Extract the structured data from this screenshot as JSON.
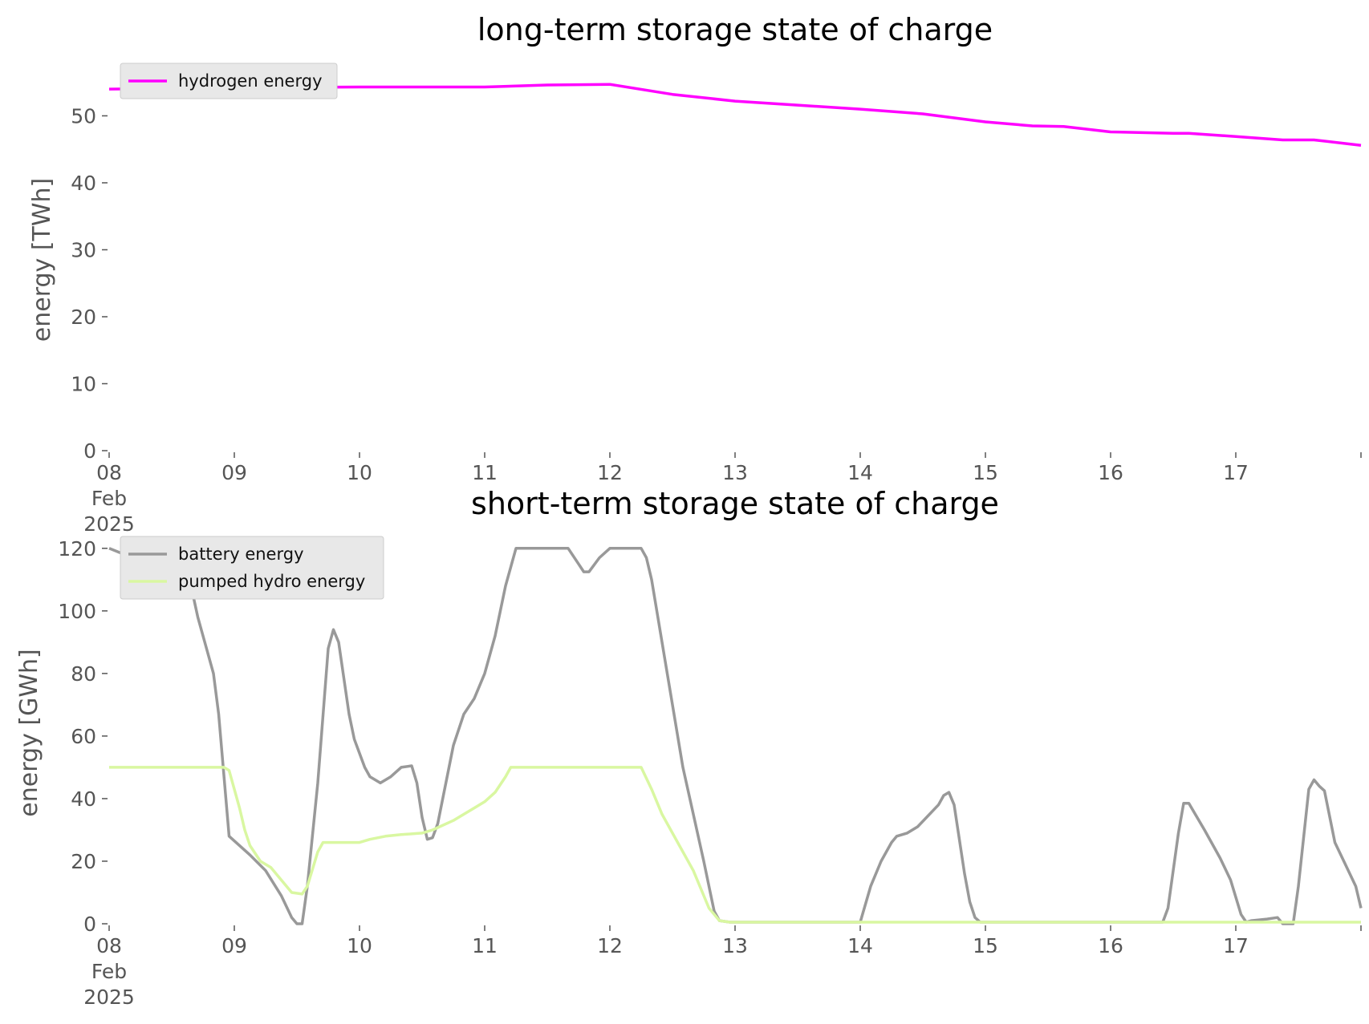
{
  "chart_data": [
    {
      "type": "line",
      "title": "long-term storage state of charge",
      "xlabel": "",
      "ylabel": "energy [TWh]",
      "ylim": [
        0,
        57
      ],
      "yticks": [
        0,
        10,
        20,
        30,
        40,
        50
      ],
      "xlim": [
        "2025-02-08",
        "2025-02-18"
      ],
      "xticks": [
        "08\nFeb\n2025",
        "09",
        "10",
        "11",
        "12",
        "13",
        "14",
        "15",
        "16",
        "17"
      ],
      "grid": false,
      "legend": "top-left",
      "series": [
        {
          "name": "hydrogen energy",
          "color": "#ff00ff",
          "points": [
            [
              "2025-02-08",
              54.0
            ],
            [
              "2025-02-09",
              54.2
            ],
            [
              "2025-02-10",
              54.3
            ],
            [
              "2025-02-11",
              54.3
            ],
            [
              "2025-02-11 12:00",
              54.6
            ],
            [
              "2025-02-12",
              54.7
            ],
            [
              "2025-02-12 12:00",
              53.2
            ],
            [
              "2025-02-13",
              52.2
            ],
            [
              "2025-02-13 12:00",
              51.6
            ],
            [
              "2025-02-14",
              51.0
            ],
            [
              "2025-02-14 12:00",
              50.3
            ],
            [
              "2025-02-15",
              49.1
            ],
            [
              "2025-02-15 09:00",
              48.5
            ],
            [
              "2025-02-15 15:00",
              48.4
            ],
            [
              "2025-02-16",
              47.6
            ],
            [
              "2025-02-16 12:00",
              47.4
            ],
            [
              "2025-02-16 15:00",
              47.4
            ],
            [
              "2025-02-17",
              46.9
            ],
            [
              "2025-02-17 09:00",
              46.4
            ],
            [
              "2025-02-17 15:00",
              46.4
            ],
            [
              "2025-02-18",
              45.6
            ]
          ]
        }
      ]
    },
    {
      "type": "line",
      "title": "short-term storage state of charge",
      "xlabel": "",
      "ylabel": "energy [GWh]",
      "ylim": [
        0,
        122
      ],
      "yticks": [
        0,
        20,
        40,
        60,
        80,
        100,
        120
      ],
      "xlim": [
        "2025-02-08",
        "2025-02-18"
      ],
      "xticks": [
        "08\nFeb\n2025",
        "09",
        "10",
        "11",
        "12",
        "13",
        "14",
        "15",
        "16",
        "17"
      ],
      "grid": false,
      "legend": "top-left",
      "series": [
        {
          "name": "battery energy",
          "color": "#999999",
          "points": [
            [
              "2025-02-08",
              120
            ],
            [
              "2025-02-08 03:00",
              118
            ],
            [
              "2025-02-08 06:00",
              117.5
            ],
            [
              "2025-02-08 09:00",
              117
            ],
            [
              "2025-02-08 12:00",
              117.5
            ],
            [
              "2025-02-08 14:00",
              121
            ],
            [
              "2025-02-08 17:00",
              98
            ],
            [
              "2025-02-08 20:00",
              80
            ],
            [
              "2025-02-08 21:00",
              67
            ],
            [
              "2025-02-08 23:00",
              28
            ],
            [
              "2025-02-09 03:00",
              22
            ],
            [
              "2025-02-09 06:00",
              17
            ],
            [
              "2025-02-09 09:00",
              9
            ],
            [
              "2025-02-09 11:00",
              2
            ],
            [
              "2025-02-09 12:00",
              0
            ],
            [
              "2025-02-09 13:00",
              0
            ],
            [
              "2025-02-09 14:00",
              12
            ],
            [
              "2025-02-09 16:00",
              45
            ],
            [
              "2025-02-09 18:00",
              88
            ],
            [
              "2025-02-09 19:00",
              94
            ],
            [
              "2025-02-09 20:00",
              90
            ],
            [
              "2025-02-09 22:00",
              67
            ],
            [
              "2025-02-09 23:00",
              59
            ],
            [
              "2025-02-10 01:00",
              50
            ],
            [
              "2025-02-10 02:00",
              47
            ],
            [
              "2025-02-10 04:00",
              45
            ],
            [
              "2025-02-10 06:00",
              47
            ],
            [
              "2025-02-10 08:00",
              50
            ],
            [
              "2025-02-10 10:00",
              50.5
            ],
            [
              "2025-02-10 11:00",
              45
            ],
            [
              "2025-02-10 12:00",
              34
            ],
            [
              "2025-02-10 13:00",
              27
            ],
            [
              "2025-02-10 14:00",
              27.5
            ],
            [
              "2025-02-10 15:00",
              32
            ],
            [
              "2025-02-10 18:00",
              57
            ],
            [
              "2025-02-10 20:00",
              67
            ],
            [
              "2025-02-10 22:00",
              72
            ],
            [
              "2025-02-11",
              80
            ],
            [
              "2025-02-11 02:00",
              92
            ],
            [
              "2025-02-11 04:00",
              108
            ],
            [
              "2025-02-11 06:00",
              120
            ],
            [
              "2025-02-11 16:00",
              120
            ],
            [
              "2025-02-11 18:00",
              115
            ],
            [
              "2025-02-11 19:00",
              112.5
            ],
            [
              "2025-02-11 20:00",
              112.5
            ],
            [
              "2025-02-11 22:00",
              117
            ],
            [
              "2025-02-12",
              120
            ],
            [
              "2025-02-12 06:00",
              120
            ],
            [
              "2025-02-12 07:00",
              117
            ],
            [
              "2025-02-12 08:00",
              110
            ],
            [
              "2025-02-12 11:00",
              80
            ],
            [
              "2025-02-12 14:00",
              50
            ],
            [
              "2025-02-12 16:00",
              35
            ],
            [
              "2025-02-12 18:00",
              20
            ],
            [
              "2025-02-12 20:00",
              4
            ],
            [
              "2025-02-12 21:00",
              1
            ],
            [
              "2025-02-12 23:00",
              0.5
            ],
            [
              "2025-02-13",
              0.5
            ],
            [
              "2025-02-14",
              0.5
            ],
            [
              "2025-02-14 02:00",
              12
            ],
            [
              "2025-02-14 04:00",
              20
            ],
            [
              "2025-02-14 06:00",
              26
            ],
            [
              "2025-02-14 07:00",
              28
            ],
            [
              "2025-02-14 09:00",
              29
            ],
            [
              "2025-02-14 11:00",
              31
            ],
            [
              "2025-02-14 15:00",
              38
            ],
            [
              "2025-02-14 16:00",
              41
            ],
            [
              "2025-02-14 17:00",
              42
            ],
            [
              "2025-02-14 18:00",
              38
            ],
            [
              "2025-02-14 20:00",
              16
            ],
            [
              "2025-02-14 21:00",
              7
            ],
            [
              "2025-02-14 22:00",
              2
            ],
            [
              "2025-02-14 23:00",
              0.5
            ],
            [
              "2025-02-16 10:00",
              0.5
            ],
            [
              "2025-02-16 11:00",
              5
            ],
            [
              "2025-02-16 13:00",
              29
            ],
            [
              "2025-02-16 14:00",
              38.5
            ],
            [
              "2025-02-16 15:00",
              38.5
            ],
            [
              "2025-02-16 18:00",
              30
            ],
            [
              "2025-02-16 21:00",
              21
            ],
            [
              "2025-02-16 23:00",
              14
            ],
            [
              "2025-02-17 01:00",
              3
            ],
            [
              "2025-02-17 02:00",
              0.5
            ],
            [
              "2025-02-17 03:00",
              1
            ],
            [
              "2025-02-17 06:00",
              1.5
            ],
            [
              "2025-02-17 08:00",
              2
            ],
            [
              "2025-02-17 09:00",
              0
            ],
            [
              "2025-02-17 10:00",
              0
            ],
            [
              "2025-02-17 11:00",
              0
            ],
            [
              "2025-02-17 12:00",
              12
            ],
            [
              "2025-02-17 14:00",
              43
            ],
            [
              "2025-02-17 15:00",
              46
            ],
            [
              "2025-02-17 16:00",
              44
            ],
            [
              "2025-02-17 17:00",
              42.5
            ],
            [
              "2025-02-17 19:00",
              26
            ],
            [
              "2025-02-17 21:00",
              19
            ],
            [
              "2025-02-17 23:00",
              12
            ],
            [
              "2025-02-18",
              5
            ]
          ]
        },
        {
          "name": "pumped hydro energy",
          "color": "#d9f7a1",
          "points": [
            [
              "2025-02-08",
              50
            ],
            [
              "2025-02-08 22:00",
              50
            ],
            [
              "2025-02-08 23:00",
              49
            ],
            [
              "2025-02-09 01:00",
              37
            ],
            [
              "2025-02-09 02:00",
              30
            ],
            [
              "2025-02-09 03:00",
              25
            ],
            [
              "2025-02-09 05:00",
              20
            ],
            [
              "2025-02-09 07:00",
              18
            ],
            [
              "2025-02-09 09:00",
              14
            ],
            [
              "2025-02-09 11:00",
              10
            ],
            [
              "2025-02-09 13:00",
              9.5
            ],
            [
              "2025-02-09 14:00",
              12
            ],
            [
              "2025-02-09 16:00",
              23
            ],
            [
              "2025-02-09 17:00",
              26
            ],
            [
              "2025-02-10",
              26
            ],
            [
              "2025-02-10 02:00",
              27
            ],
            [
              "2025-02-10 05:00",
              28
            ],
            [
              "2025-02-10 08:00",
              28.5
            ],
            [
              "2025-02-10 12:00",
              29
            ],
            [
              "2025-02-10 14:00",
              30
            ],
            [
              "2025-02-10 18:00",
              33
            ],
            [
              "2025-02-10 22:00",
              37
            ],
            [
              "2025-02-11",
              39
            ],
            [
              "2025-02-11 02:00",
              42
            ],
            [
              "2025-02-11 04:00",
              47
            ],
            [
              "2025-02-11 05:00",
              50
            ],
            [
              "2025-02-12 06:00",
              50
            ],
            [
              "2025-02-12 08:00",
              43
            ],
            [
              "2025-02-12 10:00",
              35
            ],
            [
              "2025-02-12 13:00",
              26
            ],
            [
              "2025-02-12 16:00",
              17
            ],
            [
              "2025-02-12 19:00",
              5
            ],
            [
              "2025-02-12 21:00",
              1
            ],
            [
              "2025-02-12 23:00",
              0.5
            ],
            [
              "2025-02-18",
              0.5
            ]
          ]
        }
      ]
    }
  ]
}
